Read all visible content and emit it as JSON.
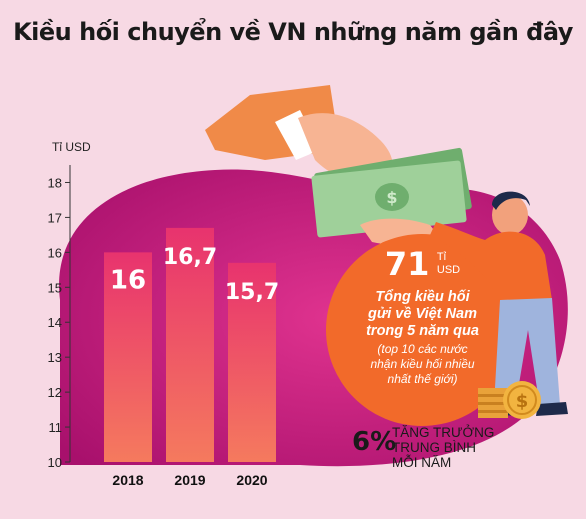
{
  "title": "Kiều hối chuyển về VN những năm gần đây",
  "callout": {
    "amount": "71",
    "amount_unit_line1": "Tỉ",
    "amount_unit_line2": "USD",
    "main_line1": "Tổng kiều hối",
    "main_line2": "gửi về Việt Nam",
    "main_line3": "trong 5 năm qua",
    "note_line1": "(top 10 các nước",
    "note_line2": "nhận kiều hối nhiều",
    "note_line3": "nhất thế giới)"
  },
  "growth": {
    "percent": "6%",
    "text_line1": "TĂNG TRƯỞNG",
    "text_line2": "TRUNG BÌNH",
    "text_line3": "MỖI NĂM"
  },
  "colors": {
    "background": "#f7d9e4",
    "blob": "#c2187a",
    "bar_top": "#e8336e",
    "bar_bottom": "#f57a5e",
    "callout_circle": "#f26a2a",
    "money": "#8fc48a"
  },
  "chart_data": {
    "type": "bar",
    "unit_label": "Tỉ USD",
    "categories": [
      "2018",
      "2019",
      "2020"
    ],
    "values": [
      16,
      16.7,
      15.7
    ],
    "value_labels": [
      "16",
      "16,7",
      "15,7"
    ],
    "y_ticks": [
      10,
      11,
      12,
      13,
      14,
      15,
      16,
      17,
      18
    ],
    "ylim": [
      10,
      18.5
    ],
    "grid": false,
    "legend": "none"
  }
}
